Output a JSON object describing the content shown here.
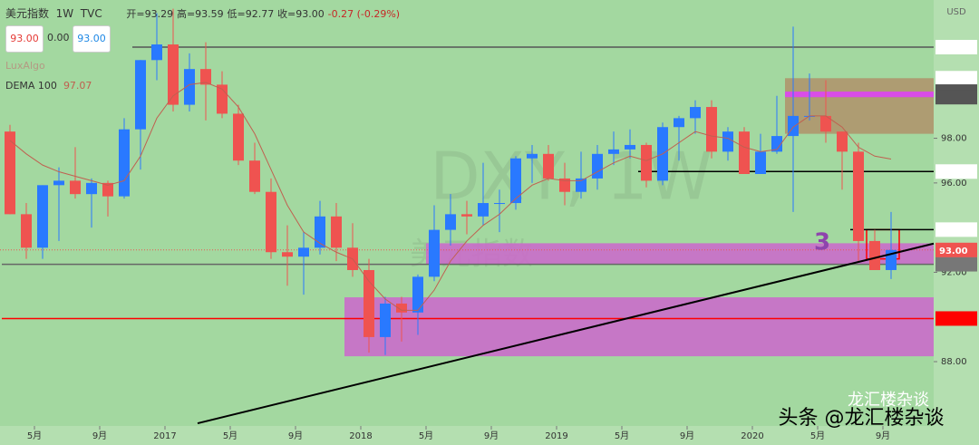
{
  "chart_data": {
    "type": "candlestick",
    "symbol": "美元指数",
    "interval": "1W",
    "source": "TVC",
    "ohlc_text": [
      "开=93.29",
      "高=93.59",
      "低=92.77",
      "收=93.00",
      "-0.27 (-0.29%)"
    ],
    "buttons": [
      "93.00",
      "0.00",
      "93.00"
    ],
    "indicator_faint": "LuxAlgo",
    "axis_unit": "USD",
    "watermark": [
      "DXY, 1W",
      "美元指数"
    ],
    "annotation": "3",
    "credit": [
      "龙汇楼杂谈",
      "头条 @龙汇楼杂谈"
    ],
    "categories": [
      "2016-03",
      "2016-04",
      "2016-05",
      "2016-06",
      "2016-07",
      "2016-08",
      "2016-09",
      "2016-10",
      "2016-11",
      "2016-12",
      "2017-01",
      "2017-02",
      "2017-03",
      "2017-04",
      "2017-05",
      "2017-06",
      "2017-07",
      "2017-08",
      "2017-09",
      "2017-10",
      "2017-11",
      "2017-12",
      "2018-01",
      "2018-02",
      "2018-03",
      "2018-04",
      "2018-05",
      "2018-06",
      "2018-07",
      "2018-08",
      "2018-09",
      "2018-10",
      "2018-11",
      "2018-12",
      "2019-01",
      "2019-02",
      "2019-03",
      "2019-04",
      "2019-05",
      "2019-06",
      "2019-07",
      "2019-08",
      "2019-09",
      "2019-10",
      "2019-11",
      "2019-12",
      "2020-01",
      "2020-02",
      "2020-03",
      "2020-04",
      "2020-05",
      "2020-06",
      "2020-07",
      "2020-08",
      "2020-09"
    ],
    "open": [
      98.3,
      94.6,
      93.1,
      95.9,
      96.1,
      95.5,
      96.0,
      95.4,
      98.4,
      101.5,
      102.2,
      99.5,
      101.1,
      100.4,
      99.1,
      97.0,
      95.6,
      92.9,
      92.7,
      93.1,
      94.5,
      93.1,
      92.1,
      89.1,
      90.6,
      90.2,
      91.8,
      93.9,
      94.6,
      94.5,
      95.1,
      95.1,
      97.1,
      97.3,
      96.2,
      95.6,
      96.2,
      97.3,
      97.5,
      97.7,
      96.1,
      98.5,
      98.9,
      99.4,
      97.4,
      98.3,
      96.4,
      97.4,
      98.1,
      99.0,
      99.0,
      98.3,
      97.4,
      93.4,
      92.1
    ],
    "high": [
      98.6,
      95.1,
      95.9,
      96.7,
      97.6,
      96.2,
      96.1,
      98.9,
      101.5,
      103.6,
      103.8,
      101.8,
      102.3,
      101.0,
      99.5,
      97.8,
      96.2,
      94.1,
      93.8,
      95.2,
      95.1,
      94.2,
      92.6,
      90.9,
      90.9,
      91.9,
      95.0,
      95.5,
      95.2,
      96.9,
      95.7,
      97.2,
      97.7,
      97.7,
      96.9,
      97.4,
      97.7,
      98.3,
      98.4,
      97.8,
      98.7,
      99.0,
      99.7,
      99.7,
      98.5,
      98.5,
      98.2,
      99.9,
      103.0,
      100.9,
      100.6,
      98.3,
      97.8,
      93.9,
      94.7
    ],
    "low": [
      94.6,
      92.6,
      92.6,
      93.4,
      95.3,
      94.0,
      94.5,
      95.3,
      96.6,
      100.6,
      99.2,
      99.2,
      98.8,
      98.9,
      96.8,
      95.5,
      92.6,
      91.4,
      91.0,
      92.8,
      92.5,
      91.8,
      88.4,
      88.3,
      88.9,
      89.2,
      91.6,
      93.2,
      93.7,
      94.1,
      93.8,
      94.8,
      96.0,
      96.1,
      95.0,
      95.3,
      95.7,
      96.8,
      97.1,
      95.8,
      95.9,
      97.0,
      98.2,
      97.1,
      97.0,
      96.4,
      96.4,
      97.3,
      94.7,
      98.8,
      97.8,
      95.7,
      92.5,
      92.1,
      91.7
    ],
    "close": [
      94.6,
      93.1,
      95.9,
      96.1,
      95.5,
      96.0,
      95.4,
      98.4,
      101.5,
      102.2,
      99.5,
      101.1,
      100.4,
      99.1,
      97.0,
      95.6,
      92.9,
      92.7,
      93.1,
      94.5,
      93.1,
      92.1,
      89.1,
      90.6,
      90.2,
      91.8,
      93.9,
      94.6,
      94.5,
      95.1,
      95.1,
      97.1,
      97.3,
      96.2,
      95.6,
      96.2,
      97.3,
      97.5,
      97.7,
      96.1,
      98.5,
      98.9,
      99.4,
      97.4,
      98.3,
      96.4,
      97.4,
      98.1,
      99.0,
      99.0,
      98.3,
      97.4,
      93.4,
      92.1,
      93.0
    ],
    "up_color": "#2979ff",
    "down_color": "#ef5350",
    "overlays": [
      {
        "name": "DEMA 100",
        "color": "#c06050",
        "values": [
          97.9,
          97.3,
          96.8,
          96.5,
          96.3,
          96.1,
          95.9,
          96.1,
          97.2,
          98.9,
          99.9,
          100.4,
          100.5,
          100.2,
          99.4,
          98.2,
          96.6,
          95.0,
          93.8,
          93.3,
          92.9,
          92.6,
          91.6,
          90.8,
          90.3,
          90.3,
          91.2,
          92.5,
          93.4,
          94.1,
          94.6,
          95.3,
          95.9,
          96.2,
          96.1,
          96.1,
          96.5,
          96.9,
          97.2,
          97.0,
          97.3,
          97.8,
          98.3,
          98.1,
          98.0,
          97.6,
          97.4,
          97.5,
          98.5,
          99.0,
          99.0,
          98.5,
          97.6,
          97.2,
          97.07
        ]
      }
    ],
    "ylim": [
      85.12,
      104.19
    ],
    "yticks": [
      {
        "value": 88,
        "label": "88.00"
      },
      {
        "value": 92,
        "label": "92.00"
      },
      {
        "value": 96,
        "label": "96.00"
      },
      {
        "value": 98,
        "label": "98.00"
      }
    ],
    "xticks": [
      {
        "value": "2016-05",
        "label": "5月"
      },
      {
        "value": "2016-09",
        "label": "9月"
      },
      {
        "value": "2017-01",
        "label": "2017"
      },
      {
        "value": "2017-05",
        "label": "5月"
      },
      {
        "value": "2017-09",
        "label": "9月"
      },
      {
        "value": "2018-01",
        "label": "2018"
      },
      {
        "value": "2018-05",
        "label": "5月"
      },
      {
        "value": "2018-09",
        "label": "9月"
      },
      {
        "value": "2019-01",
        "label": "2019"
      },
      {
        "value": "2019-05",
        "label": "5月"
      },
      {
        "value": "2019-09",
        "label": "9月"
      },
      {
        "value": "2020-01",
        "label": "2020"
      },
      {
        "value": "2020-05",
        "label": "5月"
      },
      {
        "value": "2020-09",
        "label": "9月"
      }
    ],
    "zones": [
      {
        "range": [
          88.24,
          90.88
        ],
        "from": "2017-12",
        "color": "#cc66cc"
      },
      {
        "range": [
          92.36,
          93.3
        ],
        "from": "2018-05",
        "color": "#cc66cc"
      },
      {
        "range": [
          98.2,
          100.69
        ],
        "from": "2020-03",
        "color": "#b0926a"
      },
      {
        "range": [
          99.84,
          100.09
        ],
        "from": "2020-03",
        "color": "#e040fb"
      },
      {
        "range": [
          92.6,
          93.91
        ],
        "from": "2020-08",
        "to": "2020-09",
        "color": "#ff0000",
        "outline": true
      }
    ],
    "trendline": {
      "from": "2017-03",
      "to": "2020-09",
      "values": [
        85.24,
        92.82
      ],
      "color": "#000000"
    },
    "levels": [
      {
        "value": 102.08,
        "from": "2016-11",
        "color": "#555555",
        "tag": "#ffffff"
      },
      {
        "value": 100.69,
        "tag": "#ffffff"
      },
      {
        "value": 100.09,
        "tag": "#555555"
      },
      {
        "value": 99.84,
        "tag": "#555555"
      },
      {
        "value": 96.51,
        "from": "2019-06",
        "color": "#000000",
        "tag": "#ffffff"
      },
      {
        "value": 93.91,
        "from": "2020-07",
        "color": "#000000",
        "tag": "#ffffff"
      },
      {
        "value": 92.36,
        "from": "2016-03",
        "color": "#666666",
        "tag": "#777777"
      },
      {
        "value": 89.93,
        "from": "2016-03",
        "color": "#ff0000",
        "tag": "#ff0000"
      }
    ],
    "last_price": {
      "value": 93,
      "label": "93.00",
      "color": "#ef5350"
    }
  }
}
